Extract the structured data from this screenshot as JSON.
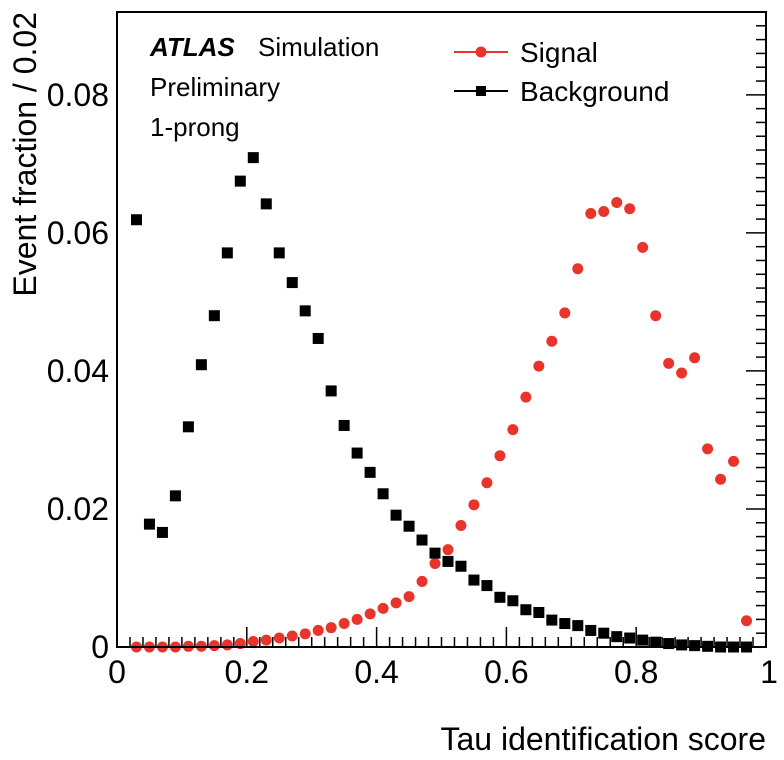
{
  "chart_data": {
    "type": "scatter",
    "xlabel": "Tau identification score",
    "ylabel": "Event fraction / 0.02",
    "xlim": [
      0,
      1
    ],
    "ylim": [
      0,
      0.092
    ],
    "xticks": [
      "0",
      "0.2",
      "0.4",
      "0.6",
      "0.8",
      "1"
    ],
    "yticks": [
      "0",
      "0.02",
      "0.04",
      "0.06",
      "0.08"
    ],
    "annotations": {
      "experiment": "ATLAS",
      "label": "Simulation",
      "status": "Preliminary",
      "category": "1-prong"
    },
    "legend_placement": "top-right",
    "series": [
      {
        "name": "Signal",
        "color": "#e8342a",
        "marker": "circle",
        "x": [
          0.03,
          0.05,
          0.07,
          0.09,
          0.11,
          0.13,
          0.15,
          0.17,
          0.19,
          0.21,
          0.23,
          0.25,
          0.27,
          0.29,
          0.31,
          0.33,
          0.35,
          0.37,
          0.39,
          0.41,
          0.43,
          0.45,
          0.47,
          0.49,
          0.51,
          0.53,
          0.55,
          0.57,
          0.59,
          0.61,
          0.63,
          0.65,
          0.67,
          0.69,
          0.71,
          0.73,
          0.75,
          0.77,
          0.79,
          0.81,
          0.83,
          0.85,
          0.87,
          0.89,
          0.91,
          0.93,
          0.95,
          0.97
        ],
        "y": [
          0.0,
          0.0,
          0.0,
          0.0,
          0.0001,
          0.0001,
          0.0002,
          0.0003,
          0.0005,
          0.0008,
          0.001,
          0.0013,
          0.0016,
          0.0019,
          0.0024,
          0.0028,
          0.0034,
          0.004,
          0.0048,
          0.0056,
          0.0064,
          0.0073,
          0.0095,
          0.0121,
          0.0141,
          0.0176,
          0.0206,
          0.0238,
          0.0277,
          0.0315,
          0.0362,
          0.0407,
          0.0443,
          0.0484,
          0.0548,
          0.0628,
          0.0631,
          0.0644,
          0.0635,
          0.0579,
          0.048,
          0.0411,
          0.0397,
          0.0419,
          0.0287,
          0.0243,
          0.0269,
          0.0038
        ]
      },
      {
        "name": "Background",
        "color": "#000000",
        "marker": "square",
        "x": [
          0.03,
          0.05,
          0.07,
          0.09,
          0.11,
          0.13,
          0.15,
          0.17,
          0.19,
          0.21,
          0.23,
          0.25,
          0.27,
          0.29,
          0.31,
          0.33,
          0.35,
          0.37,
          0.39,
          0.41,
          0.43,
          0.45,
          0.47,
          0.49,
          0.51,
          0.53,
          0.55,
          0.57,
          0.59,
          0.61,
          0.63,
          0.65,
          0.67,
          0.69,
          0.71,
          0.73,
          0.75,
          0.77,
          0.79,
          0.81,
          0.83,
          0.85,
          0.87,
          0.89,
          0.91,
          0.93,
          0.95,
          0.97
        ],
        "y": [
          0.0619,
          0.0178,
          0.0166,
          0.0219,
          0.0319,
          0.0409,
          0.048,
          0.0571,
          0.0675,
          0.0709,
          0.0642,
          0.0571,
          0.0528,
          0.0487,
          0.0447,
          0.0371,
          0.0321,
          0.0281,
          0.0253,
          0.0222,
          0.0191,
          0.0175,
          0.0155,
          0.0136,
          0.0124,
          0.0117,
          0.0097,
          0.0089,
          0.0072,
          0.0067,
          0.0054,
          0.005,
          0.0039,
          0.0034,
          0.0031,
          0.0024,
          0.002,
          0.0015,
          0.0013,
          0.001,
          0.0007,
          0.0005,
          0.0003,
          0.0002,
          0.0001,
          0.0,
          0.0,
          0.0
        ]
      }
    ]
  }
}
